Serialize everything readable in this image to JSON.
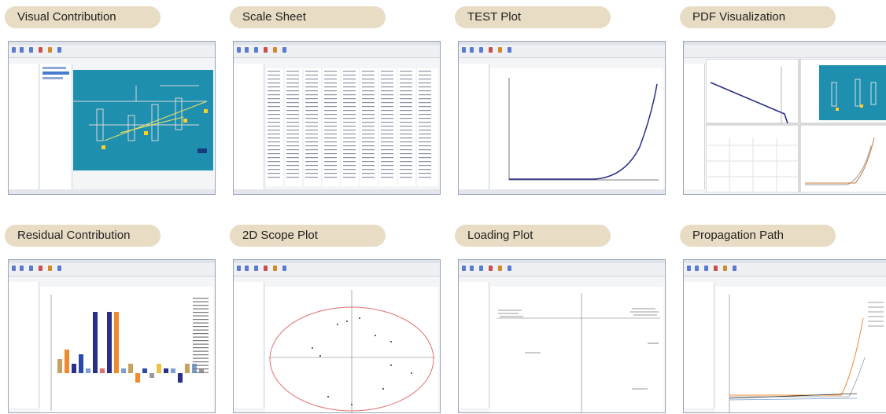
{
  "cards": [
    {
      "id": "visual-contribution",
      "title": "Visual Contribution"
    },
    {
      "id": "scale-sheet",
      "title": "Scale Sheet"
    },
    {
      "id": "test-plot",
      "title": "TEST Plot"
    },
    {
      "id": "pdf-visualization",
      "title": "PDF Visualization"
    },
    {
      "id": "residual-contribution",
      "title": "Residual Contribution"
    },
    {
      "id": "2d-scope-plot",
      "title": "2D Scope Plot"
    },
    {
      "id": "loading-plot",
      "title": "Loading Plot"
    },
    {
      "id": "propagation-path",
      "title": "Propagation Path"
    }
  ],
  "colors": {
    "pill": "#e8dcc4",
    "process_bg": "#1f8fb0",
    "curve": "#2a2f8a",
    "ellipse": "#e07070",
    "accent_orange": "#f08a30"
  },
  "chart_data": {
    "type": "bar",
    "title": "",
    "values": [
      3,
      5,
      2,
      4,
      1,
      13,
      1,
      13,
      13,
      1,
      2,
      -2,
      1,
      -1,
      2,
      1,
      1,
      -2,
      2,
      2,
      1
    ]
  }
}
